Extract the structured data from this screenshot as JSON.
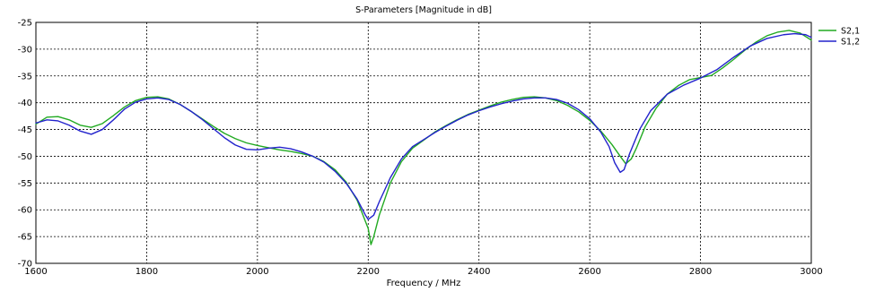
{
  "chart_data": {
    "type": "line",
    "title": "S-Parameters [Magnitude in dB]",
    "xlabel": "Frequency / MHz",
    "ylabel": "",
    "xlim": [
      1600,
      3000
    ],
    "ylim": [
      -70,
      -25
    ],
    "xticks": [
      1600,
      1800,
      2000,
      2200,
      2400,
      2600,
      2800,
      3000
    ],
    "yticks": [
      -25,
      -30,
      -35,
      -40,
      -45,
      -50,
      -55,
      -60,
      -65,
      -70
    ],
    "grid": true,
    "legend_position": "top-right",
    "series": [
      {
        "name": "S2,1",
        "color": "#22aa22",
        "points": [
          [
            1600,
            -44.0
          ],
          [
            1620,
            -42.7
          ],
          [
            1640,
            -42.6
          ],
          [
            1660,
            -43.2
          ],
          [
            1680,
            -44.2
          ],
          [
            1700,
            -44.6
          ],
          [
            1720,
            -43.9
          ],
          [
            1740,
            -42.4
          ],
          [
            1760,
            -40.8
          ],
          [
            1780,
            -39.6
          ],
          [
            1800,
            -39.0
          ],
          [
            1820,
            -38.9
          ],
          [
            1840,
            -39.3
          ],
          [
            1860,
            -40.3
          ],
          [
            1880,
            -41.6
          ],
          [
            1900,
            -43.0
          ],
          [
            1920,
            -44.4
          ],
          [
            1940,
            -45.7
          ],
          [
            1960,
            -46.7
          ],
          [
            1980,
            -47.5
          ],
          [
            2000,
            -48.0
          ],
          [
            2020,
            -48.4
          ],
          [
            2040,
            -48.8
          ],
          [
            2060,
            -49.1
          ],
          [
            2080,
            -49.5
          ],
          [
            2100,
            -50.0
          ],
          [
            2120,
            -51.0
          ],
          [
            2140,
            -52.5
          ],
          [
            2160,
            -54.8
          ],
          [
            2180,
            -58.2
          ],
          [
            2200,
            -63.5
          ],
          [
            2205,
            -66.5
          ],
          [
            2210,
            -65.0
          ],
          [
            2220,
            -61.0
          ],
          [
            2240,
            -55.0
          ],
          [
            2260,
            -51.0
          ],
          [
            2280,
            -48.5
          ],
          [
            2300,
            -47.0
          ],
          [
            2320,
            -45.5
          ],
          [
            2340,
            -44.3
          ],
          [
            2360,
            -43.2
          ],
          [
            2380,
            -42.2
          ],
          [
            2400,
            -41.4
          ],
          [
            2420,
            -40.6
          ],
          [
            2440,
            -39.9
          ],
          [
            2460,
            -39.4
          ],
          [
            2480,
            -39.0
          ],
          [
            2500,
            -38.9
          ],
          [
            2520,
            -39.1
          ],
          [
            2540,
            -39.6
          ],
          [
            2560,
            -40.5
          ],
          [
            2580,
            -41.7
          ],
          [
            2600,
            -43.3
          ],
          [
            2620,
            -45.3
          ],
          [
            2640,
            -47.8
          ],
          [
            2655,
            -50.0
          ],
          [
            2665,
            -51.4
          ],
          [
            2675,
            -50.5
          ],
          [
            2685,
            -48.3
          ],
          [
            2700,
            -44.5
          ],
          [
            2720,
            -41.0
          ],
          [
            2740,
            -38.4
          ],
          [
            2760,
            -36.8
          ],
          [
            2780,
            -35.7
          ],
          [
            2800,
            -35.3
          ],
          [
            2820,
            -34.9
          ],
          [
            2840,
            -33.5
          ],
          [
            2860,
            -31.9
          ],
          [
            2880,
            -30.2
          ],
          [
            2900,
            -28.7
          ],
          [
            2920,
            -27.5
          ],
          [
            2940,
            -26.8
          ],
          [
            2960,
            -26.5
          ],
          [
            2980,
            -27.0
          ],
          [
            3000,
            -28.3
          ]
        ]
      },
      {
        "name": "S1,2",
        "color": "#2222cc",
        "points": [
          [
            1600,
            -43.8
          ],
          [
            1620,
            -43.2
          ],
          [
            1640,
            -43.4
          ],
          [
            1660,
            -44.2
          ],
          [
            1680,
            -45.3
          ],
          [
            1700,
            -45.9
          ],
          [
            1720,
            -45.0
          ],
          [
            1740,
            -43.2
          ],
          [
            1760,
            -41.2
          ],
          [
            1780,
            -39.9
          ],
          [
            1800,
            -39.3
          ],
          [
            1820,
            -39.1
          ],
          [
            1840,
            -39.4
          ],
          [
            1860,
            -40.3
          ],
          [
            1880,
            -41.6
          ],
          [
            1900,
            -43.1
          ],
          [
            1920,
            -44.8
          ],
          [
            1940,
            -46.5
          ],
          [
            1960,
            -47.9
          ],
          [
            1980,
            -48.7
          ],
          [
            2000,
            -48.8
          ],
          [
            2020,
            -48.5
          ],
          [
            2040,
            -48.3
          ],
          [
            2060,
            -48.6
          ],
          [
            2080,
            -49.2
          ],
          [
            2100,
            -50.0
          ],
          [
            2120,
            -51.1
          ],
          [
            2140,
            -52.8
          ],
          [
            2160,
            -55.0
          ],
          [
            2180,
            -58.0
          ],
          [
            2195,
            -61.0
          ],
          [
            2200,
            -61.8
          ],
          [
            2210,
            -61.0
          ],
          [
            2220,
            -58.5
          ],
          [
            2240,
            -54.0
          ],
          [
            2260,
            -50.5
          ],
          [
            2280,
            -48.2
          ],
          [
            2300,
            -46.9
          ],
          [
            2320,
            -45.6
          ],
          [
            2340,
            -44.4
          ],
          [
            2360,
            -43.3
          ],
          [
            2380,
            -42.3
          ],
          [
            2400,
            -41.5
          ],
          [
            2420,
            -40.8
          ],
          [
            2440,
            -40.2
          ],
          [
            2460,
            -39.7
          ],
          [
            2480,
            -39.3
          ],
          [
            2500,
            -39.1
          ],
          [
            2520,
            -39.1
          ],
          [
            2540,
            -39.4
          ],
          [
            2560,
            -40.1
          ],
          [
            2580,
            -41.3
          ],
          [
            2600,
            -43.0
          ],
          [
            2620,
            -45.5
          ],
          [
            2635,
            -48.2
          ],
          [
            2645,
            -51.2
          ],
          [
            2655,
            -53.0
          ],
          [
            2662,
            -52.5
          ],
          [
            2672,
            -49.5
          ],
          [
            2690,
            -45.0
          ],
          [
            2710,
            -41.5
          ],
          [
            2740,
            -38.4
          ],
          [
            2770,
            -36.7
          ],
          [
            2800,
            -35.4
          ],
          [
            2830,
            -33.8
          ],
          [
            2860,
            -31.5
          ],
          [
            2890,
            -29.4
          ],
          [
            2920,
            -28.0
          ],
          [
            2950,
            -27.3
          ],
          [
            2970,
            -27.1
          ],
          [
            2990,
            -27.3
          ],
          [
            3000,
            -27.8
          ]
        ]
      }
    ]
  }
}
